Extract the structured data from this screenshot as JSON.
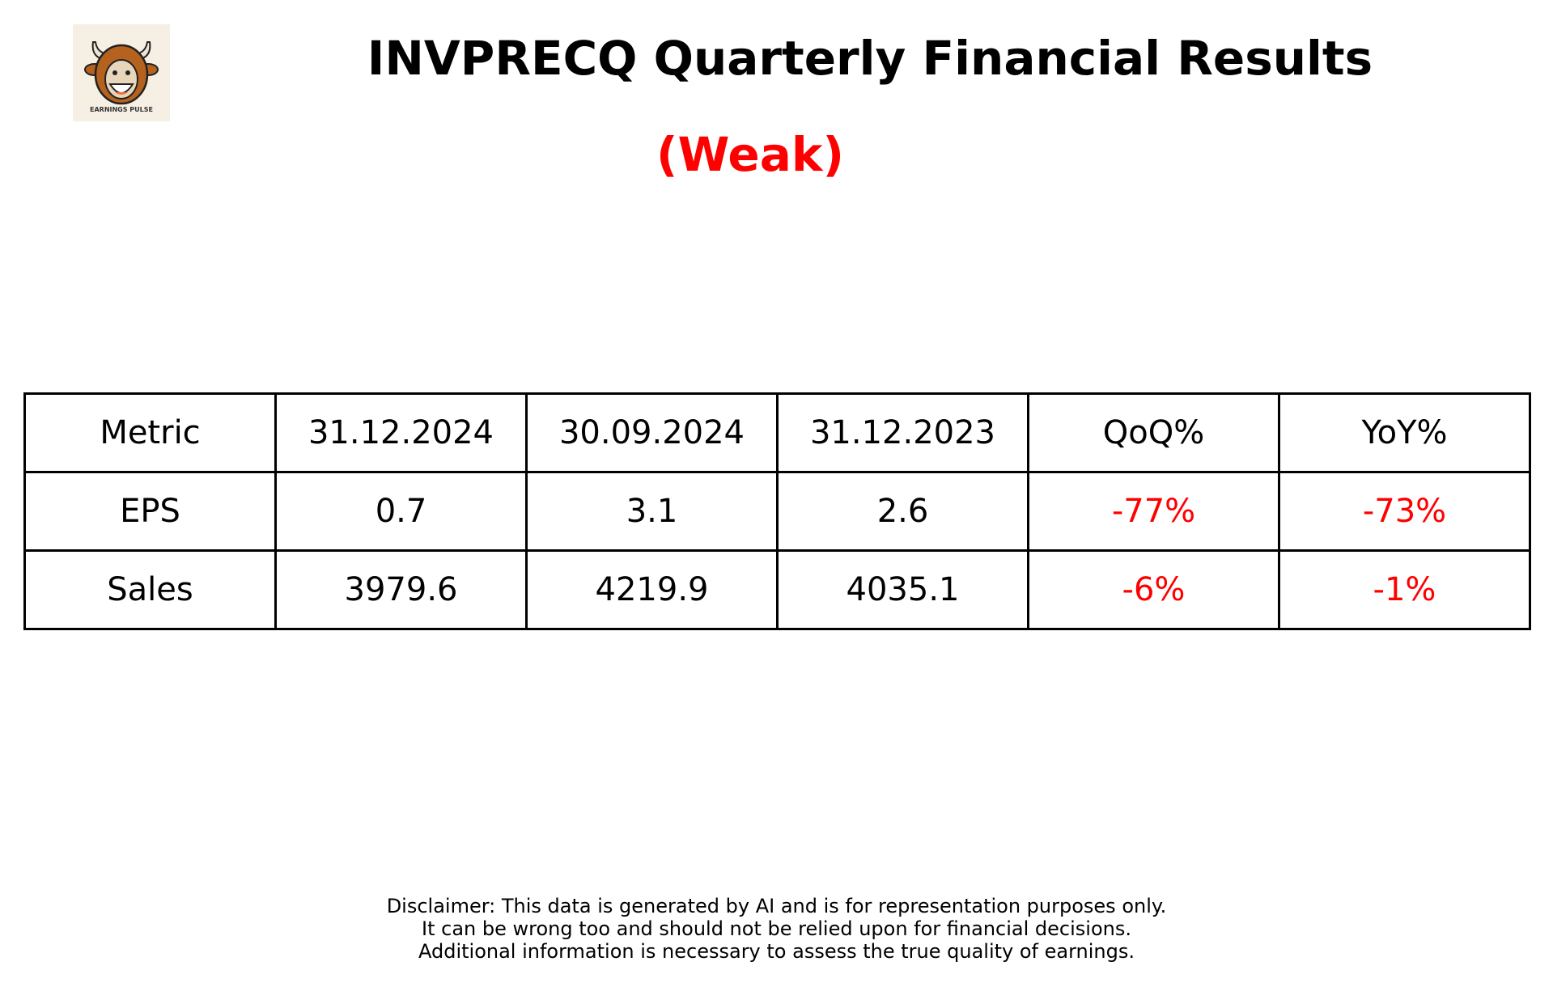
{
  "logo": {
    "text": "EARNINGS PULSE",
    "icon": "bull-face-icon"
  },
  "header": {
    "title": "INVPRECQ Quarterly Financial Results",
    "rating": "(Weak)",
    "rating_color": "#ff0000"
  },
  "table": {
    "headers": [
      "Metric",
      "31.12.2024",
      "30.09.2024",
      "31.12.2023",
      "QoQ%",
      "YoY%"
    ],
    "rows": [
      {
        "metric": "EPS",
        "q1": "0.7",
        "q2": "3.1",
        "q3": "2.6",
        "qoq": "-77%",
        "yoy": "-73%"
      },
      {
        "metric": "Sales",
        "q1": "3979.6",
        "q2": "4219.9",
        "q3": "4035.1",
        "qoq": "-6%",
        "yoy": "-1%"
      }
    ],
    "negative_color": "#ff0000"
  },
  "disclaimer": [
    "Disclaimer: This data is generated by AI and is for representation purposes only.",
    "It can be wrong too and should not be relied upon for financial decisions.",
    "Additional information is necessary to assess the true quality of earnings."
  ]
}
